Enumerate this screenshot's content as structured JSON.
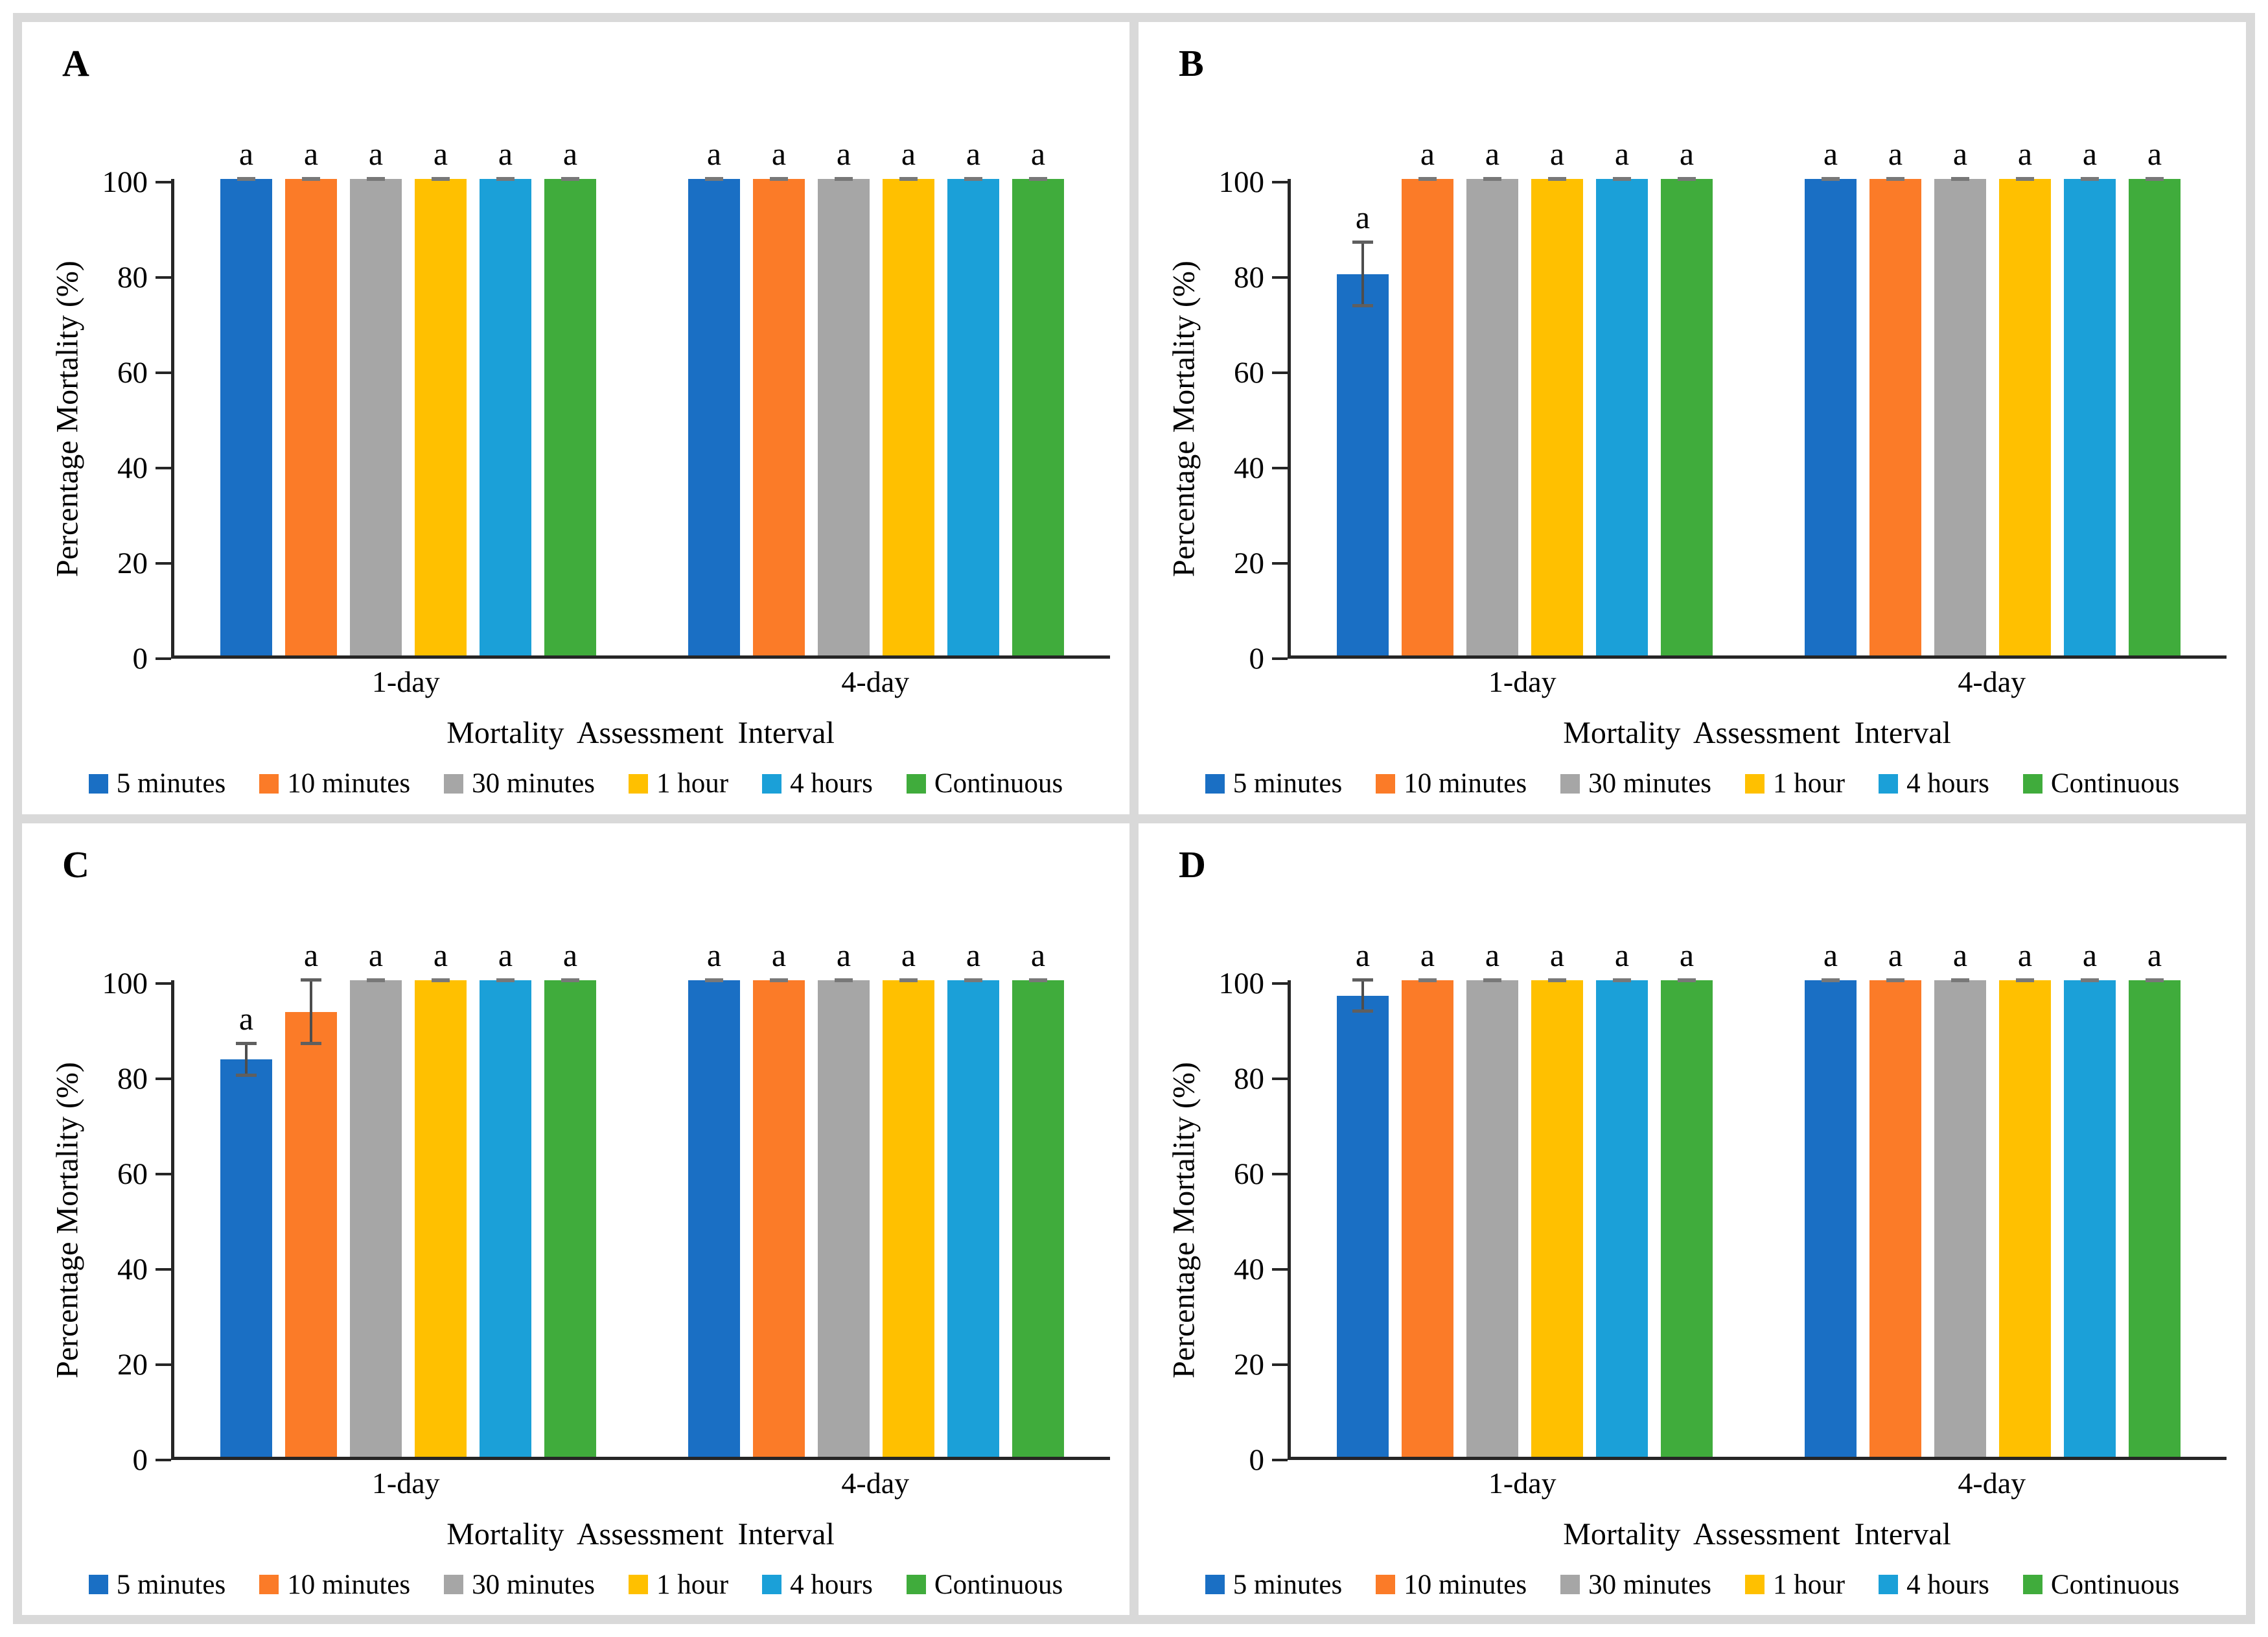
{
  "figure": {
    "background": "#ffffff",
    "border_color": "#d9d9d9"
  },
  "chart_data": [
    {
      "type": "bar",
      "panel": "A",
      "title": "",
      "xlabel": "Mortality Assessment Interval",
      "ylabel": "Percentage Mortality (%)",
      "categories": [
        "1-day",
        "4-day"
      ],
      "ylim": [
        0,
        100
      ],
      "yticks": [
        0,
        20,
        40,
        60,
        80,
        100
      ],
      "grid": false,
      "legend_position": "bottom",
      "point_labels": "a",
      "series": [
        {
          "name": "5 minutes",
          "color": "#1A6FC4",
          "values": [
            100,
            100
          ],
          "errors": [
            0,
            0
          ]
        },
        {
          "name": "10 minutes",
          "color": "#FB7B28",
          "values": [
            100,
            100
          ],
          "errors": [
            0,
            0
          ]
        },
        {
          "name": "30 minutes",
          "color": "#A6A6A6",
          "values": [
            100,
            100
          ],
          "errors": [
            0,
            0
          ]
        },
        {
          "name": "1 hour",
          "color": "#FFC000",
          "values": [
            100,
            100
          ],
          "errors": [
            0,
            0
          ]
        },
        {
          "name": "4 hours",
          "color": "#1BA0D8",
          "values": [
            100,
            100
          ],
          "errors": [
            0,
            0
          ]
        },
        {
          "name": "Continuous",
          "color": "#40AC3C",
          "values": [
            100,
            100
          ],
          "errors": [
            0,
            0
          ]
        }
      ]
    },
    {
      "type": "bar",
      "panel": "B",
      "title": "",
      "xlabel": "Mortality Assessment Interval",
      "ylabel": "Percentage Mortality (%)",
      "categories": [
        "1-day",
        "4-day"
      ],
      "ylim": [
        0,
        100
      ],
      "yticks": [
        0,
        20,
        40,
        60,
        80,
        100
      ],
      "grid": false,
      "legend_position": "bottom",
      "point_labels": "a",
      "series": [
        {
          "name": "5 minutes",
          "color": "#1A6FC4",
          "values": [
            80,
            100
          ],
          "errors": [
            6.7,
            0
          ]
        },
        {
          "name": "10 minutes",
          "color": "#FB7B28",
          "values": [
            100,
            100
          ],
          "errors": [
            0,
            0
          ]
        },
        {
          "name": "30 minutes",
          "color": "#A6A6A6",
          "values": [
            100,
            100
          ],
          "errors": [
            0,
            0
          ]
        },
        {
          "name": "1 hour",
          "color": "#FFC000",
          "values": [
            100,
            100
          ],
          "errors": [
            0,
            0
          ]
        },
        {
          "name": "4 hours",
          "color": "#1BA0D8",
          "values": [
            100,
            100
          ],
          "errors": [
            0,
            0
          ]
        },
        {
          "name": "Continuous",
          "color": "#40AC3C",
          "values": [
            100,
            100
          ],
          "errors": [
            0,
            0
          ]
        }
      ]
    },
    {
      "type": "bar",
      "panel": "C",
      "title": "",
      "xlabel": "Mortality Assessment Interval",
      "ylabel": "Percentage Mortality (%)",
      "categories": [
        "1-day",
        "4-day"
      ],
      "ylim": [
        0,
        100
      ],
      "yticks": [
        0,
        20,
        40,
        60,
        80,
        100
      ],
      "grid": false,
      "legend_position": "bottom",
      "point_labels": "a",
      "series": [
        {
          "name": "5 minutes",
          "color": "#1A6FC4",
          "values": [
            83.3,
            100
          ],
          "errors": [
            3.3,
            0
          ]
        },
        {
          "name": "10 minutes",
          "color": "#FB7B28",
          "values": [
            93.3,
            100
          ],
          "errors": [
            6.7,
            0
          ]
        },
        {
          "name": "30 minutes",
          "color": "#A6A6A6",
          "values": [
            100,
            100
          ],
          "errors": [
            0,
            0
          ]
        },
        {
          "name": "1 hour",
          "color": "#FFC000",
          "values": [
            100,
            100
          ],
          "errors": [
            0,
            0
          ]
        },
        {
          "name": "4 hours",
          "color": "#1BA0D8",
          "values": [
            100,
            100
          ],
          "errors": [
            0,
            0
          ]
        },
        {
          "name": "Continuous",
          "color": "#40AC3C",
          "values": [
            100,
            100
          ],
          "errors": [
            0,
            0
          ]
        }
      ]
    },
    {
      "type": "bar",
      "panel": "D",
      "title": "",
      "xlabel": "Mortality Assessment Interval",
      "ylabel": "Percentage Mortality (%)",
      "categories": [
        "1-day",
        "4-day"
      ],
      "ylim": [
        0,
        100
      ],
      "yticks": [
        0,
        20,
        40,
        60,
        80,
        100
      ],
      "grid": false,
      "legend_position": "bottom",
      "point_labels": "a",
      "series": [
        {
          "name": "5 minutes",
          "color": "#1A6FC4",
          "values": [
            96.7,
            100
          ],
          "errors": [
            3.3,
            0
          ]
        },
        {
          "name": "10 minutes",
          "color": "#FB7B28",
          "values": [
            100,
            100
          ],
          "errors": [
            0,
            0
          ]
        },
        {
          "name": "30 minutes",
          "color": "#A6A6A6",
          "values": [
            100,
            100
          ],
          "errors": [
            0,
            0
          ]
        },
        {
          "name": "1 hour",
          "color": "#FFC000",
          "values": [
            100,
            100
          ],
          "errors": [
            0,
            0
          ]
        },
        {
          "name": "4 hours",
          "color": "#1BA0D8",
          "values": [
            100,
            100
          ],
          "errors": [
            0,
            0
          ]
        },
        {
          "name": "Continuous",
          "color": "#40AC3C",
          "values": [
            100,
            100
          ],
          "errors": [
            0,
            0
          ]
        }
      ]
    }
  ]
}
